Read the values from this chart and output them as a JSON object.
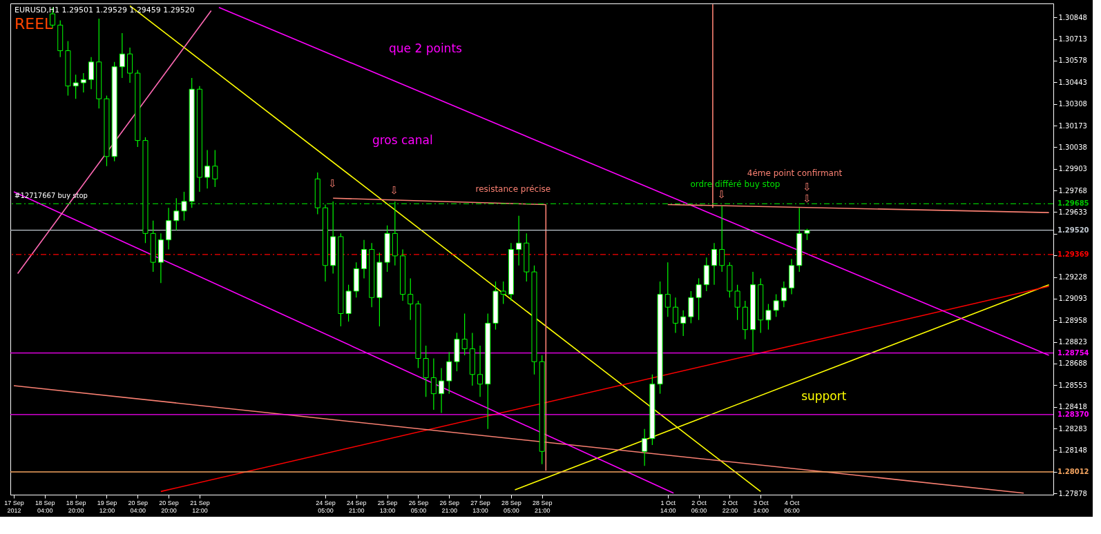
{
  "chart_data": {
    "type": "candlestick",
    "title": "EURUSD,H1  1.29501 1.29529 1.29459 1.29520",
    "subtitle": "REEL",
    "color": "#00ff00",
    "x": [
      "2012-09-18T08:00",
      "2012-09-18T12:00",
      "2012-09-18T16:00",
      "2012-09-18T20:00",
      "2012-09-19T00:00",
      "2012-09-19T04:00",
      "2012-09-19T08:00",
      "2012-09-19T12:00",
      "2012-09-19T16:00",
      "2012-09-19T20:00",
      "2012-09-20T00:00",
      "2012-09-20T04:00",
      "2012-09-20T08:00",
      "2012-09-20T12:00",
      "2012-09-20T16:00",
      "2012-09-20T20:00",
      "2012-09-21T00:00",
      "2012-09-21T04:00",
      "2012-09-21T08:00",
      "2012-09-21T12:00",
      "2012-09-21T16:00",
      "2012-09-21T20:00",
      "2012-09-24T01:00",
      "2012-09-24T05:00",
      "2012-09-24T09:00",
      "2012-09-24T13:00",
      "2012-09-24T17:00",
      "2012-09-24T21:00",
      "2012-09-25T01:00",
      "2012-09-25T05:00",
      "2012-09-25T09:00",
      "2012-09-25T13:00",
      "2012-09-25T17:00",
      "2012-09-25T21:00",
      "2012-09-26T01:00",
      "2012-09-26T05:00",
      "2012-09-26T09:00",
      "2012-09-26T13:00",
      "2012-09-26T17:00",
      "2012-09-26T21:00",
      "2012-09-27T01:00",
      "2012-09-27T05:00",
      "2012-09-27T09:00",
      "2012-09-27T13:00",
      "2012-09-27T17:00",
      "2012-09-27T21:00",
      "2012-09-28T01:00",
      "2012-09-28T05:00",
      "2012-09-28T09:00",
      "2012-09-28T13:00",
      "2012-09-28T17:00",
      "2012-09-28T21:00",
      "2012-10-01T02:00",
      "2012-10-01T06:00",
      "2012-10-01T10:00",
      "2012-10-01T14:00",
      "2012-10-01T18:00",
      "2012-10-01T22:00",
      "2012-10-02T02:00",
      "2012-10-02T06:00",
      "2012-10-02T10:00",
      "2012-10-02T14:00",
      "2012-10-02T18:00",
      "2012-10-02T22:00",
      "2012-10-03T02:00",
      "2012-10-03T06:00",
      "2012-10-03T10:00",
      "2012-10-03T14:00",
      "2012-10-03T18:00",
      "2012-10-03T22:00",
      "2012-10-04T02:00",
      "2012-10-04T06:00",
      "2012-10-04T10:00",
      "2012-10-04T14:00"
    ],
    "ohlc": [
      [
        1.3087,
        1.3091,
        1.3078,
        1.308
      ],
      [
        1.308,
        1.3083,
        1.306,
        1.3064
      ],
      [
        1.3064,
        1.307,
        1.3036,
        1.3042
      ],
      [
        1.3042,
        1.3049,
        1.3034,
        1.3044
      ],
      [
        1.3044,
        1.305,
        1.3038,
        1.3046
      ],
      [
        1.3046,
        1.306,
        1.304,
        1.3057
      ],
      [
        1.3057,
        1.3084,
        1.3028,
        1.3034
      ],
      [
        1.3034,
        1.3036,
        1.2992,
        1.2998
      ],
      [
        1.2998,
        1.3057,
        1.2995,
        1.3054
      ],
      [
        1.3054,
        1.3075,
        1.3047,
        1.3062
      ],
      [
        1.3062,
        1.3066,
        1.3044,
        1.305
      ],
      [
        1.305,
        1.3052,
        1.3004,
        1.3008
      ],
      [
        1.3008,
        1.301,
        1.2944,
        1.295
      ],
      [
        1.295,
        1.2958,
        1.2926,
        1.2932
      ],
      [
        1.2932,
        1.295,
        1.2919,
        1.2946
      ],
      [
        1.2946,
        1.2966,
        1.294,
        1.2958
      ],
      [
        1.2958,
        1.2972,
        1.2952,
        1.2964
      ],
      [
        1.2964,
        1.2976,
        1.2958,
        1.297
      ],
      [
        1.297,
        1.3047,
        1.2966,
        1.304
      ],
      [
        1.304,
        1.3042,
        1.2976,
        1.2985
      ],
      [
        1.2985,
        1.3002,
        1.2978,
        1.2992
      ],
      [
        1.2992,
        1.3002,
        1.2979,
        1.2984
      ],
      [
        1.2984,
        1.2988,
        1.2962,
        1.2966
      ],
      [
        1.2966,
        1.2968,
        1.292,
        1.293
      ],
      [
        1.293,
        1.297,
        1.2925,
        1.2948
      ],
      [
        1.2948,
        1.295,
        1.2892,
        1.29
      ],
      [
        1.29,
        1.2918,
        1.2895,
        1.2914
      ],
      [
        1.2914,
        1.2932,
        1.291,
        1.2928
      ],
      [
        1.2928,
        1.2946,
        1.2922,
        1.294
      ],
      [
        1.294,
        1.2944,
        1.2904,
        1.291
      ],
      [
        1.291,
        1.2938,
        1.2892,
        1.2932
      ],
      [
        1.2932,
        1.2955,
        1.2926,
        1.295
      ],
      [
        1.295,
        1.297,
        1.293,
        1.2936
      ],
      [
        1.2936,
        1.294,
        1.2908,
        1.2912
      ],
      [
        1.2912,
        1.2922,
        1.2896,
        1.2906
      ],
      [
        1.2906,
        1.2908,
        1.2866,
        1.2872
      ],
      [
        1.2872,
        1.288,
        1.2848,
        1.286
      ],
      [
        1.286,
        1.2872,
        1.284,
        1.285
      ],
      [
        1.285,
        1.2866,
        1.2838,
        1.2858
      ],
      [
        1.2858,
        1.2876,
        1.285,
        1.287
      ],
      [
        1.287,
        1.2888,
        1.2864,
        1.2884
      ],
      [
        1.2884,
        1.29,
        1.2874,
        1.2878
      ],
      [
        1.2878,
        1.2888,
        1.2855,
        1.2862
      ],
      [
        1.2862,
        1.288,
        1.2848,
        1.2856
      ],
      [
        1.2856,
        1.29,
        1.2828,
        1.2894
      ],
      [
        1.2894,
        1.292,
        1.289,
        1.2914
      ],
      [
        1.2914,
        1.292,
        1.2906,
        1.2912
      ],
      [
        1.2912,
        1.2944,
        1.2908,
        1.294
      ],
      [
        1.294,
        1.2961,
        1.293,
        1.2944
      ],
      [
        1.2944,
        1.295,
        1.292,
        1.2926
      ],
      [
        1.2926,
        1.293,
        1.2862,
        1.287
      ],
      [
        1.287,
        1.2874,
        1.2806,
        1.2814
      ],
      [
        1.2814,
        1.2828,
        1.2805,
        1.2822
      ],
      [
        1.2822,
        1.2862,
        1.2818,
        1.2856
      ],
      [
        1.2856,
        1.292,
        1.285,
        1.2912
      ],
      [
        1.2912,
        1.2932,
        1.2898,
        1.2904
      ],
      [
        1.2904,
        1.291,
        1.2888,
        1.2894
      ],
      [
        1.2894,
        1.2902,
        1.2886,
        1.2898
      ],
      [
        1.2898,
        1.2914,
        1.2894,
        1.291
      ],
      [
        1.291,
        1.2922,
        1.2896,
        1.2918
      ],
      [
        1.2918,
        1.2935,
        1.2914,
        1.293
      ],
      [
        1.293,
        1.2944,
        1.2918,
        1.294
      ],
      [
        1.294,
        1.2967,
        1.2926,
        1.293
      ],
      [
        1.293,
        1.2932,
        1.291,
        1.2914
      ],
      [
        1.2914,
        1.2918,
        1.2896,
        1.2904
      ],
      [
        1.2904,
        1.2908,
        1.2884,
        1.289
      ],
      [
        1.289,
        1.2926,
        1.2876,
        1.2918
      ],
      [
        1.2918,
        1.2922,
        1.2888,
        1.2896
      ],
      [
        1.2896,
        1.2906,
        1.289,
        1.2902
      ],
      [
        1.2902,
        1.2912,
        1.2898,
        1.2908
      ],
      [
        1.2908,
        1.292,
        1.2904,
        1.2916
      ],
      [
        1.2916,
        1.2934,
        1.2912,
        1.293
      ],
      [
        1.293,
        1.2966,
        1.2926,
        1.295
      ],
      [
        1.29501,
        1.29529,
        1.29459,
        1.2952
      ]
    ],
    "series": [
      {
        "type": "line",
        "color": "#ffff00",
        "x": [
          "2012-09-20T00:00",
          "2012-10-03T14:00"
        ],
        "values": [
          1.3092,
          1.2789
        ]
      },
      {
        "type": "line",
        "color": "#ffff00",
        "x": [
          "2012-09-28T07:00",
          "2012-10-09T19:00"
        ],
        "values": [
          1.279,
          1.2918
        ]
      },
      {
        "type": "line",
        "color": "#ff0000",
        "x": [
          "2012-09-20T16:00",
          "2012-10-09T19:00"
        ],
        "values": [
          1.2789,
          1.2917
        ]
      },
      {
        "type": "line",
        "color": "#fa8072",
        "x": [
          "2012-09-17T12:00",
          "2012-10-09T06:00"
        ],
        "values": [
          1.2855,
          1.2788
        ]
      },
      {
        "type": "line",
        "color": "#ff00ff",
        "x": [
          "2012-09-17T12:00",
          "2012-10-01T17:00"
        ],
        "values": [
          1.2976,
          1.2788
        ]
      },
      {
        "type": "line",
        "color": "#ff00ff",
        "x": [
          "2012-09-21T22:00",
          "2012-10-09T19:00"
        ],
        "values": [
          1.3091,
          1.2874
        ]
      },
      {
        "type": "line",
        "color": "#ff69b4",
        "x": [
          "2012-09-17T14:00",
          "2012-09-21T18:00"
        ],
        "values": [
          1.2925,
          1.3089
        ]
      },
      {
        "type": "line",
        "color": "#fa8072",
        "x": [
          "2012-09-24T09:00",
          "2012-09-28T23:00"
        ],
        "values": [
          1.2972,
          1.2968
        ]
      },
      {
        "type": "line",
        "color": "#fa8072",
        "x": [
          "2012-10-01T14:00",
          "2012-10-09T19:00"
        ],
        "values": [
          1.2968,
          1.2963
        ]
      },
      {
        "type": "line",
        "color": "#fa8072",
        "x": [
          "2012-09-28T23:00",
          "2012-09-28T23:00"
        ],
        "values": [
          1.2968,
          1.2802
        ]
      },
      {
        "type": "line",
        "color": "#fa8072",
        "x": [
          "2012-10-02T13:15",
          "2012-10-02T13:15"
        ],
        "values": [
          1.3093,
          1.2966
        ]
      }
    ],
    "ref_lines": [
      {
        "axis": "y",
        "value": 1.29685,
        "label": "1.29685",
        "color": "#00c800",
        "line_style": "dashed"
      },
      {
        "axis": "y",
        "value": 1.2952,
        "label": "1.29520",
        "color": "#c0c8d0",
        "line_style": "solid"
      },
      {
        "axis": "y",
        "value": 1.29369,
        "label": "1.29369",
        "color": "#ff0000",
        "line_style": "dashed"
      },
      {
        "axis": "y",
        "value": 1.28754,
        "label": "1.28754",
        "color": "#ff00ff",
        "line_style": "solid"
      },
      {
        "axis": "y",
        "value": 1.2837,
        "label": "1.28370",
        "color": "#ff00ff",
        "line_style": "solid"
      },
      {
        "axis": "y",
        "value": 1.28012,
        "label": "1.28012",
        "color": "#f4a460",
        "line_style": "solid"
      }
    ],
    "annotations": [
      "#12717667 buy stop",
      "que 2 points",
      "gros canal",
      "resistance précise",
      "4éme point confirmant",
      "ordre différé buy stop",
      "support",
      "⇩",
      "⇩",
      "⇩",
      "⇩",
      "⇩"
    ],
    "xlim": [
      "2012-09-17T12:00",
      "2012-10-09T19:30"
    ],
    "xticks": [
      {
        "value": "2012-09-17T12:00",
        "label": "17 Sep 2012"
      },
      {
        "value": "2012-09-18T04:00",
        "label": "18 Sep 04:00"
      },
      {
        "value": "2012-09-18T20:00",
        "label": "18 Sep 20:00"
      },
      {
        "value": "2012-09-19T12:00",
        "label": "19 Sep 12:00"
      },
      {
        "value": "2012-09-20T04:00",
        "label": "20 Sep 04:00"
      },
      {
        "value": "2012-09-20T20:00",
        "label": "20 Sep 20:00"
      },
      {
        "value": "2012-09-21T12:00",
        "label": "21 Sep 12:00"
      },
      {
        "value": "2012-09-24T05:00",
        "label": "24 Sep 05:00"
      },
      {
        "value": "2012-09-24T21:00",
        "label": "24 Sep 21:00"
      },
      {
        "value": "2012-09-25T13:00",
        "label": "25 Sep 13:00"
      },
      {
        "value": "2012-09-26T05:00",
        "label": "26 Sep 05:00"
      },
      {
        "value": "2012-09-26T21:00",
        "label": "26 Sep 21:00"
      },
      {
        "value": "2012-09-27T13:00",
        "label": "27 Sep 13:00"
      },
      {
        "value": "2012-09-28T05:00",
        "label": "28 Sep 05:00"
      },
      {
        "value": "2012-09-28T21:00",
        "label": "28 Sep 21:00"
      },
      {
        "value": "2012-10-01T14:00",
        "label": "1 Oct 14:00"
      },
      {
        "value": "2012-10-02T06:00",
        "label": "2 Oct 06:00"
      },
      {
        "value": "2012-10-02T22:00",
        "label": "2 Oct 22:00"
      },
      {
        "value": "2012-10-03T14:00",
        "label": "3 Oct 14:00"
      },
      {
        "value": "2012-10-04T06:00",
        "label": "4 Oct 06:00"
      }
    ],
    "ylim": [
      1.2787,
      1.30935
    ],
    "yticks": [
      1.30848,
      1.30713,
      1.30578,
      1.30443,
      1.30308,
      1.30173,
      1.30038,
      1.29903,
      1.29768,
      1.29633,
      {
        "value": 1.29498,
        "label": null
      },
      {
        "value": 1.29363,
        "label": null
      },
      1.29228,
      1.29093,
      1.28958,
      1.28823,
      1.28688,
      1.28553,
      1.28418,
      1.28283,
      1.28148,
      {
        "value": 1.28013,
        "label": null
      },
      1.27878
    ],
    "grid": false
  }
}
